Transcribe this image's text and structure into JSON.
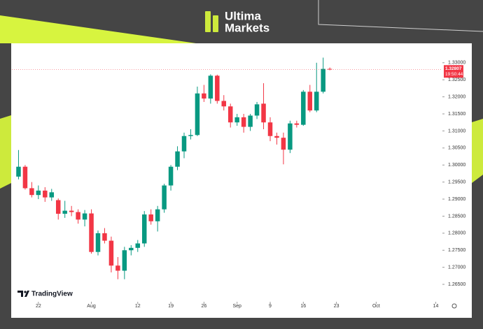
{
  "brand": {
    "name_line1": "Ultima",
    "name_line2": "Markets"
  },
  "watermark": "TradingView",
  "chart_data": {
    "type": "candlestick",
    "up_color": "#089981",
    "down_color": "#f23645",
    "open": [
      1.2966,
      1.2995,
      1.2932,
      1.2912,
      1.2925,
      1.2905,
      1.2897,
      1.2857,
      1.2866,
      1.2862,
      1.284,
      1.2858,
      1.2745,
      1.28,
      1.2778,
      1.2705,
      1.269,
      1.275,
      1.2757,
      1.277,
      1.2855,
      1.2835,
      1.287,
      1.294,
      1.2995,
      1.304,
      1.3085,
      1.3088,
      1.321,
      1.3195,
      1.3262,
      1.3188,
      1.3172,
      1.3125,
      1.314,
      1.3112,
      1.3145,
      1.318,
      1.3125,
      1.3085,
      1.308,
      1.3045,
      1.3122,
      1.3118,
      1.3215,
      1.316,
      1.3215,
      1.3282
    ],
    "high": [
      1.3044,
      1.3,
      1.295,
      1.294,
      1.2935,
      1.293,
      1.2902,
      1.2895,
      1.288,
      1.287,
      1.2868,
      1.287,
      1.2808,
      1.2815,
      1.279,
      1.273,
      1.276,
      1.2765,
      1.278,
      1.2865,
      1.287,
      1.288,
      1.2945,
      1.3,
      1.3055,
      1.3095,
      1.3105,
      1.323,
      1.3235,
      1.3266,
      1.3265,
      1.3205,
      1.318,
      1.315,
      1.315,
      1.315,
      1.3185,
      1.324,
      1.314,
      1.3095,
      1.3095,
      1.313,
      1.313,
      1.322,
      1.3235,
      1.33,
      1.3315,
      1.3286
    ],
    "low": [
      1.2958,
      1.2928,
      1.2905,
      1.29,
      1.2892,
      1.2895,
      1.284,
      1.2845,
      1.285,
      1.2828,
      1.282,
      1.274,
      1.2735,
      1.277,
      1.2685,
      1.2665,
      1.2665,
      1.2735,
      1.2745,
      1.276,
      1.2825,
      1.2805,
      1.286,
      1.2925,
      1.2985,
      1.302,
      1.3075,
      1.3085,
      1.3185,
      1.318,
      1.318,
      1.316,
      1.311,
      1.3115,
      1.3095,
      1.31,
      1.3135,
      1.3105,
      1.307,
      1.306,
      1.3002,
      1.3035,
      1.311,
      1.3115,
      1.3155,
      1.3155,
      1.321,
      1.3278
    ],
    "close": [
      1.2995,
      1.2932,
      1.2912,
      1.2925,
      1.2905,
      1.292,
      1.2857,
      1.2866,
      1.2862,
      1.284,
      1.2858,
      1.2745,
      1.28,
      1.2778,
      1.2705,
      1.269,
      1.275,
      1.2757,
      1.277,
      1.2855,
      1.2835,
      1.287,
      1.294,
      1.2995,
      1.304,
      1.3085,
      1.3088,
      1.321,
      1.3195,
      1.3262,
      1.3188,
      1.3172,
      1.3125,
      1.314,
      1.3112,
      1.3145,
      1.3178,
      1.3125,
      1.3085,
      1.308,
      1.3045,
      1.3122,
      1.3118,
      1.3215,
      1.316,
      1.3215,
      1.3282,
      1.32807
    ],
    "xlim": [
      -1,
      64
    ],
    "xticks": [
      {
        "value": 3,
        "label": "22"
      },
      {
        "value": 11,
        "label": "Aug"
      },
      {
        "value": 18,
        "label": "12"
      },
      {
        "value": 23,
        "label": "19"
      },
      {
        "value": 28,
        "label": "26"
      },
      {
        "value": 33,
        "label": "Sep"
      },
      {
        "value": 38,
        "label": "9"
      },
      {
        "value": 43,
        "label": "16"
      },
      {
        "value": 48,
        "label": "23"
      },
      {
        "value": 54,
        "label": "Oct"
      },
      {
        "value": 63,
        "label": "14"
      }
    ],
    "ylim": [
      1.2603,
      1.3357
    ],
    "yticks": [
      {
        "value": 1.265,
        "label": "1.26500"
      },
      {
        "value": 1.27,
        "label": "1.27000"
      },
      {
        "value": 1.275,
        "label": "1.27500"
      },
      {
        "value": 1.28,
        "label": "1.28000"
      },
      {
        "value": 1.285,
        "label": "1.28500"
      },
      {
        "value": 1.29,
        "label": "1.29000"
      },
      {
        "value": 1.295,
        "label": "1.29500"
      },
      {
        "value": 1.3,
        "label": "1.30000"
      },
      {
        "value": 1.305,
        "label": "1.30500"
      },
      {
        "value": 1.31,
        "label": "1.31000"
      },
      {
        "value": 1.315,
        "label": "1.31500"
      },
      {
        "value": 1.32,
        "label": "1.32000"
      },
      {
        "value": 1.325,
        "label": "1.32500"
      },
      {
        "value": 1.33,
        "label": "1.33000"
      }
    ],
    "last_price": 1.32807,
    "countdown": "19:50:44"
  }
}
